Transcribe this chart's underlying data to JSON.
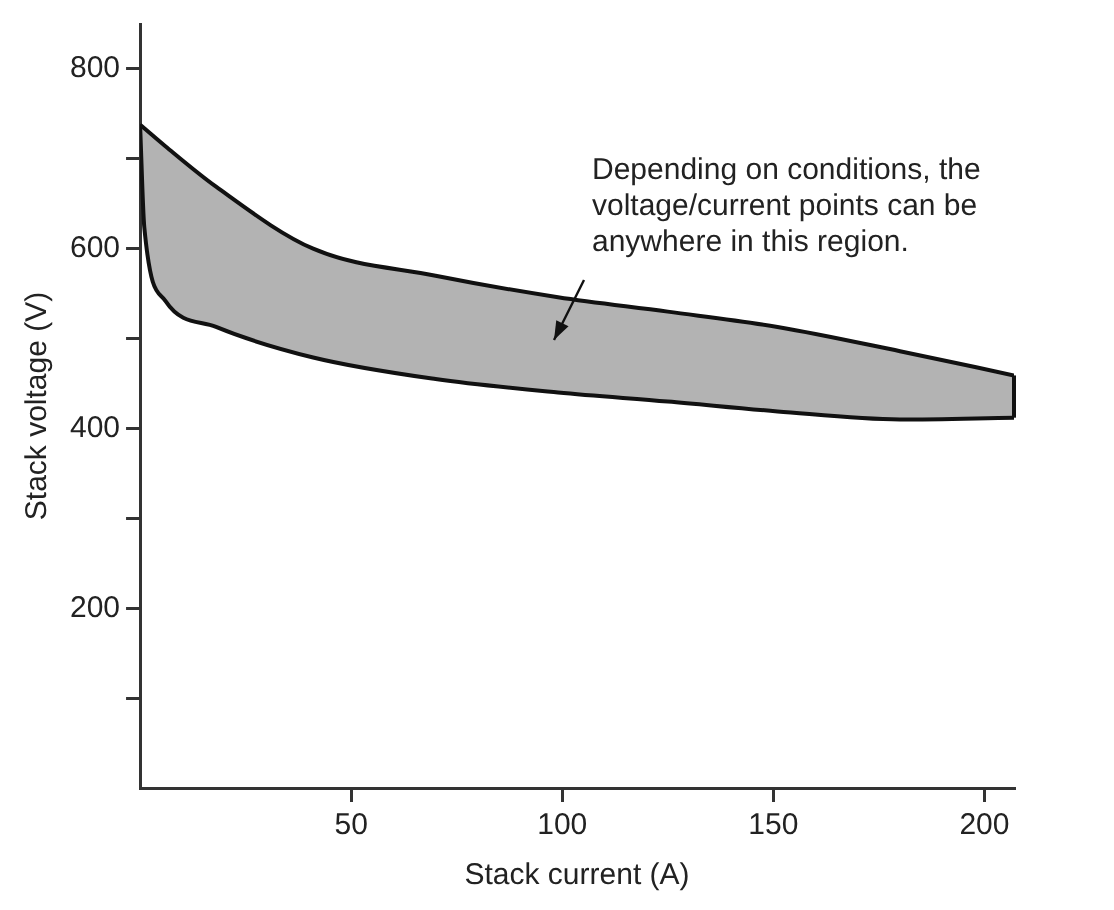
{
  "chart_data": {
    "type": "line",
    "xlabel": "Stack current (A)",
    "ylabel": "Stack voltage (V)",
    "x": [
      0,
      1,
      6,
      18,
      41,
      70,
      99,
      125,
      151,
      180,
      207
    ],
    "series": [
      {
        "values": [
          738,
          734,
          714,
          669,
          600,
          570,
          546,
          530,
          513,
          486,
          459
        ],
        "color": "#111111",
        "lower": [
          738,
          624,
          542,
          513,
          479,
          455,
          440,
          430,
          419,
          410,
          412
        ],
        "upper": [
          738,
          734,
          714,
          669,
          600,
          570,
          546,
          530,
          513,
          486,
          459
        ]
      },
      {
        "values": [
          738,
          624,
          542,
          513,
          479,
          455,
          440,
          430,
          419,
          410,
          412
        ],
        "color": "#111111"
      }
    ],
    "xlim": [
      0,
      207
    ],
    "ylim": [
      0,
      850
    ],
    "xticks": [
      50,
      100,
      150,
      200
    ],
    "yticks": [
      {
        "value": 100,
        "label": null
      },
      200,
      {
        "value": 300,
        "label": null
      },
      400,
      {
        "value": 500,
        "label": null
      },
      600,
      {
        "value": 700,
        "label": null
      },
      800
    ],
    "annotations": [
      "Depending on conditions, the voltage/current points can be anywhere in this region."
    ],
    "grid": false,
    "legend": false,
    "marker": "none"
  }
}
